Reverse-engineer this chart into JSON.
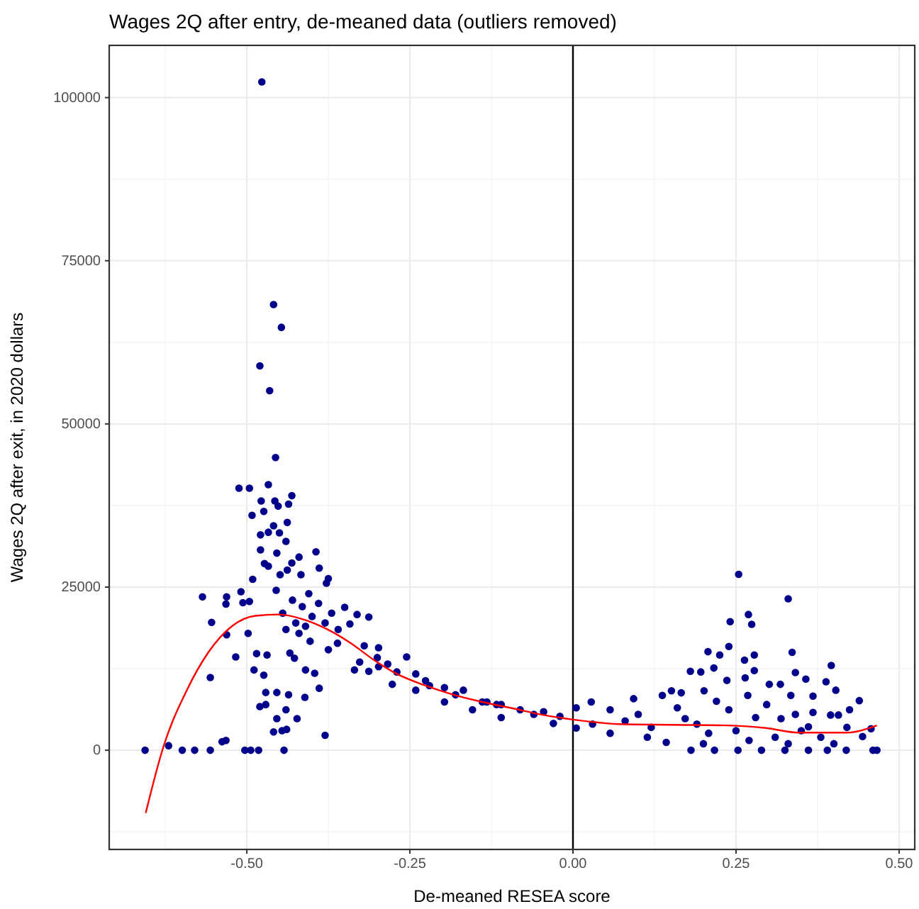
{
  "chart_data": {
    "type": "scatter",
    "title": "Wages 2Q after entry, de-meaned data (outliers removed)",
    "xlabel": "De-meaned RESEA score",
    "ylabel": "Wages 2Q after exit, in 2020 dollars",
    "xlim": [
      -0.711,
      0.524
    ],
    "ylim": [
      -15200,
      108000
    ],
    "xticks": [
      {
        "value": -0.5,
        "label": "-0.50"
      },
      {
        "value": -0.25,
        "label": "-0.25"
      },
      {
        "value": 0,
        "label": "0.00"
      },
      {
        "value": 0.25,
        "label": "0.25"
      },
      {
        "value": 0.5,
        "label": "0.50"
      }
    ],
    "yticks": [
      0,
      25000,
      50000,
      75000,
      100000
    ],
    "grid": true,
    "ref_lines": [
      {
        "axis": "x",
        "value": 0,
        "color": "#000000"
      }
    ],
    "series": [
      {
        "color": "#00008b",
        "marker": "circle",
        "x": [
          -0.656,
          -0.62,
          -0.599,
          -0.58,
          -0.556,
          -0.538,
          -0.532,
          -0.503,
          -0.494,
          -0.482,
          -0.443,
          -0.556,
          -0.554,
          -0.568,
          -0.532,
          -0.531,
          -0.531,
          -0.517,
          -0.509,
          -0.506,
          -0.496,
          -0.498,
          -0.512,
          -0.496,
          -0.467,
          -0.456,
          -0.478,
          -0.492,
          -0.474,
          -0.457,
          -0.452,
          -0.436,
          -0.431,
          -0.438,
          -0.459,
          -0.45,
          -0.479,
          -0.467,
          -0.479,
          -0.473,
          -0.467,
          -0.454,
          -0.44,
          -0.491,
          -0.431,
          -0.42,
          -0.394,
          -0.389,
          -0.375,
          -0.378,
          -0.417,
          -0.438,
          -0.449,
          -0.485,
          -0.489,
          -0.469,
          -0.474,
          -0.471,
          -0.454,
          -0.436,
          -0.48,
          -0.471,
          -0.454,
          -0.44,
          -0.423,
          -0.459,
          -0.446,
          -0.439,
          -0.411,
          -0.389,
          -0.38,
          -0.434,
          -0.427,
          -0.41,
          -0.396,
          -0.375,
          -0.361,
          -0.42,
          -0.403,
          -0.445,
          -0.43,
          -0.425,
          -0.415,
          -0.405,
          -0.4,
          -0.39,
          -0.38,
          -0.37,
          -0.36,
          -0.35,
          -0.455,
          -0.44,
          -0.41,
          -0.477,
          -0.459,
          -0.447,
          -0.48,
          -0.465,
          -0.342,
          -0.331,
          -0.313,
          -0.335,
          -0.327,
          -0.313,
          -0.298,
          -0.298,
          -0.284,
          -0.255,
          -0.241,
          -0.226,
          -0.197,
          -0.168,
          -0.132,
          -0.11,
          -0.277,
          -0.241,
          -0.197,
          -0.154,
          -0.11,
          -0.139,
          -0.117,
          -0.081,
          -0.045,
          -0.03,
          -0.32,
          -0.3,
          -0.27,
          -0.22,
          -0.18,
          -0.06,
          -0.02,
          0.005,
          0.005,
          0.028,
          0.057,
          0.057,
          0.093,
          0.114,
          0.137,
          0.151,
          0.166,
          0.143,
          0.172,
          0.201,
          0.208,
          0.239,
          0.268,
          0.297,
          0.319,
          0.334,
          0.341,
          0.254,
          0.33,
          0.241,
          0.269,
          0.274,
          0.207,
          0.225,
          0.239,
          0.336,
          0.263,
          0.278,
          0.18,
          0.196,
          0.216,
          0.278,
          0.264,
          0.236,
          0.341,
          0.357,
          0.396,
          0.388,
          0.403,
          0.301,
          0.318,
          0.439,
          0.424,
          0.407,
          0.395,
          0.368,
          0.361,
          0.368,
          0.444,
          0.457,
          0.46,
          0.466,
          0.419,
          0.39,
          0.361,
          0.325,
          0.289,
          0.253,
          0.217,
          0.181,
          0.03,
          0.08,
          0.1,
          0.12,
          0.16,
          0.19,
          0.22,
          0.25,
          0.28,
          0.31,
          0.35,
          0.38,
          0.42,
          0.2,
          0.27,
          0.33,
          0.4
        ],
        "values": [
          0,
          700,
          0,
          0,
          0,
          1300,
          1500,
          0,
          0,
          0,
          0,
          11150,
          19600,
          23500,
          22400,
          23500,
          17700,
          14300,
          24300,
          22600,
          22800,
          17900,
          40150,
          40150,
          40700,
          44850,
          38200,
          36000,
          36600,
          38200,
          37400,
          37700,
          39000,
          34900,
          34400,
          33300,
          33000,
          33400,
          30700,
          28600,
          28200,
          30200,
          32000,
          26200,
          28700,
          29600,
          30400,
          27900,
          26300,
          25600,
          26900,
          27600,
          26900,
          14800,
          12300,
          14600,
          11500,
          8850,
          8850,
          8500,
          6700,
          7000,
          4850,
          6200,
          4850,
          2800,
          3000,
          3200,
          8100,
          9500,
          2300,
          14900,
          14100,
          12300,
          11800,
          15400,
          16400,
          17900,
          16700,
          21000,
          23000,
          19500,
          22000,
          24000,
          20500,
          22500,
          19500,
          21000,
          18500,
          21900,
          24500,
          18500,
          19000,
          102400,
          68300,
          64800,
          58900,
          55100,
          19350,
          20800,
          20400,
          12300,
          13500,
          12100,
          12800,
          15700,
          13200,
          14300,
          11700,
          10650,
          9600,
          9200,
          7400,
          7000,
          10100,
          9200,
          7400,
          6200,
          5000,
          7400,
          7000,
          6200,
          5900,
          4100,
          16000,
          14200,
          12000,
          9900,
          8500,
          5500,
          5200,
          6500,
          3400,
          7400,
          6200,
          2600,
          7900,
          2000,
          8400,
          9100,
          8800,
          1200,
          4850,
          9100,
          2600,
          6200,
          8400,
          7000,
          4850,
          8400,
          5500,
          26950,
          23200,
          19700,
          20800,
          19300,
          15100,
          14600,
          15900,
          15000,
          13800,
          14600,
          12100,
          12000,
          12600,
          12200,
          11100,
          10700,
          11900,
          10900,
          13000,
          10500,
          9200,
          10100,
          10100,
          7600,
          6200,
          5400,
          5400,
          5800,
          3600,
          8300,
          2100,
          3300,
          0,
          0,
          0,
          0,
          0,
          0,
          0,
          0,
          0,
          0,
          4000,
          4500,
          5500,
          3500,
          6500,
          4000,
          7500,
          3000,
          5000,
          2000,
          3000,
          2000,
          3500,
          1000,
          1500,
          1000,
          1000
        ]
      },
      {
        "type": "line",
        "color": "#ff0000",
        "line_style": "solid",
        "x": [
          -0.655,
          -0.628,
          -0.592,
          -0.559,
          -0.523,
          -0.487,
          -0.451,
          -0.415,
          -0.378,
          -0.342,
          -0.306,
          -0.27,
          -0.226,
          -0.183,
          -0.139,
          -0.096,
          -0.045,
          0,
          0.071,
          0.151,
          0.238,
          0.296,
          0.346,
          0.419,
          0.466
        ],
        "values": [
          -9600,
          500,
          9200,
          15000,
          19000,
          20600,
          20800,
          20100,
          18600,
          16500,
          13900,
          11700,
          9900,
          8500,
          7400,
          6500,
          5400,
          4700,
          4000,
          3900,
          3800,
          3400,
          2700,
          2700,
          3800
        ]
      }
    ]
  }
}
